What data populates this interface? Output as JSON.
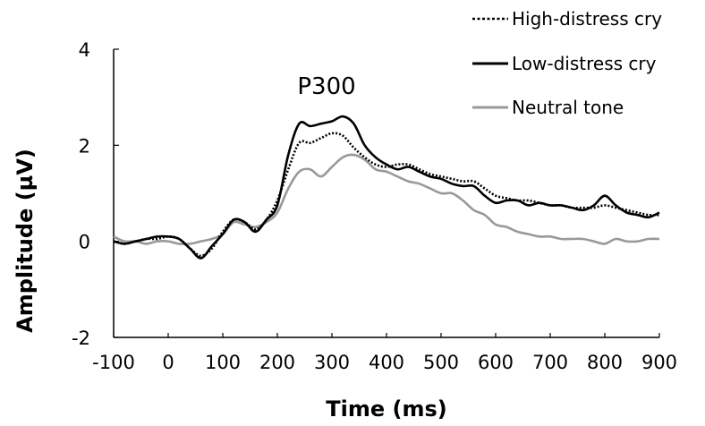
{
  "chart_data": {
    "type": "line",
    "title": "",
    "xlabel": "Time (ms)",
    "ylabel": "Amplitude (µV)",
    "xlim": [
      -100,
      900
    ],
    "ylim": [
      -2,
      4
    ],
    "xticks": [
      -100,
      0,
      100,
      200,
      300,
      400,
      500,
      600,
      700,
      800,
      900
    ],
    "yticks": [
      -2,
      0,
      2,
      4
    ],
    "grid": false,
    "legend_position": "top-right",
    "annotations": [
      {
        "text": "P300",
        "x": 300,
        "y": 3.2
      }
    ],
    "series": [
      {
        "name": "High-distress cry",
        "color": "#000000",
        "style": "dotted",
        "x": [
          -100,
          -80,
          -60,
          -40,
          -20,
          0,
          20,
          40,
          60,
          80,
          100,
          120,
          140,
          160,
          180,
          200,
          220,
          240,
          260,
          280,
          300,
          320,
          340,
          360,
          380,
          400,
          420,
          440,
          460,
          480,
          500,
          520,
          540,
          560,
          580,
          600,
          620,
          640,
          660,
          680,
          700,
          720,
          740,
          760,
          780,
          800,
          820,
          840,
          860,
          880,
          900
        ],
        "y": [
          0.0,
          -0.05,
          0.0,
          0.05,
          0.05,
          0.1,
          0.05,
          -0.15,
          -0.3,
          -0.15,
          0.2,
          0.45,
          0.4,
          0.25,
          0.45,
          0.85,
          1.5,
          2.05,
          2.05,
          2.15,
          2.25,
          2.2,
          1.95,
          1.75,
          1.6,
          1.55,
          1.6,
          1.6,
          1.5,
          1.4,
          1.35,
          1.3,
          1.25,
          1.25,
          1.1,
          0.95,
          0.9,
          0.85,
          0.85,
          0.8,
          0.75,
          0.75,
          0.7,
          0.7,
          0.7,
          0.75,
          0.7,
          0.65,
          0.6,
          0.55,
          0.55
        ]
      },
      {
        "name": "Low-distress cry",
        "color": "#000000",
        "style": "solid",
        "x": [
          -100,
          -80,
          -60,
          -40,
          -20,
          0,
          20,
          40,
          60,
          80,
          100,
          120,
          140,
          160,
          180,
          200,
          220,
          240,
          260,
          280,
          300,
          320,
          340,
          360,
          380,
          400,
          420,
          440,
          460,
          480,
          500,
          520,
          540,
          560,
          580,
          600,
          620,
          640,
          660,
          680,
          700,
          720,
          740,
          760,
          780,
          800,
          820,
          840,
          860,
          880,
          900
        ],
        "y": [
          0.0,
          -0.05,
          0.0,
          0.05,
          0.1,
          0.1,
          0.05,
          -0.15,
          -0.35,
          -0.1,
          0.15,
          0.45,
          0.4,
          0.2,
          0.45,
          0.75,
          1.8,
          2.45,
          2.4,
          2.45,
          2.5,
          2.6,
          2.45,
          2.0,
          1.75,
          1.6,
          1.5,
          1.55,
          1.45,
          1.35,
          1.3,
          1.2,
          1.15,
          1.15,
          0.95,
          0.8,
          0.85,
          0.85,
          0.75,
          0.8,
          0.75,
          0.75,
          0.7,
          0.65,
          0.75,
          0.95,
          0.75,
          0.6,
          0.55,
          0.5,
          0.6
        ]
      },
      {
        "name": "Neutral tone",
        "color": "#999999",
        "style": "solid",
        "x": [
          -100,
          -80,
          -60,
          -40,
          -20,
          0,
          20,
          40,
          60,
          80,
          100,
          120,
          140,
          160,
          180,
          200,
          220,
          240,
          260,
          280,
          300,
          320,
          340,
          360,
          380,
          400,
          420,
          440,
          460,
          480,
          500,
          520,
          540,
          560,
          580,
          600,
          620,
          640,
          660,
          680,
          700,
          720,
          740,
          760,
          780,
          800,
          820,
          840,
          860,
          880,
          900
        ],
        "y": [
          0.1,
          0.0,
          0.0,
          -0.05,
          0.0,
          0.0,
          -0.05,
          -0.05,
          0.0,
          0.05,
          0.15,
          0.4,
          0.35,
          0.3,
          0.4,
          0.6,
          1.1,
          1.45,
          1.5,
          1.35,
          1.55,
          1.75,
          1.8,
          1.7,
          1.5,
          1.45,
          1.35,
          1.25,
          1.2,
          1.1,
          1.0,
          1.0,
          0.85,
          0.65,
          0.55,
          0.35,
          0.3,
          0.2,
          0.15,
          0.1,
          0.1,
          0.05,
          0.05,
          0.05,
          0.0,
          -0.05,
          0.05,
          0.0,
          0.0,
          0.05,
          0.05
        ]
      }
    ]
  }
}
